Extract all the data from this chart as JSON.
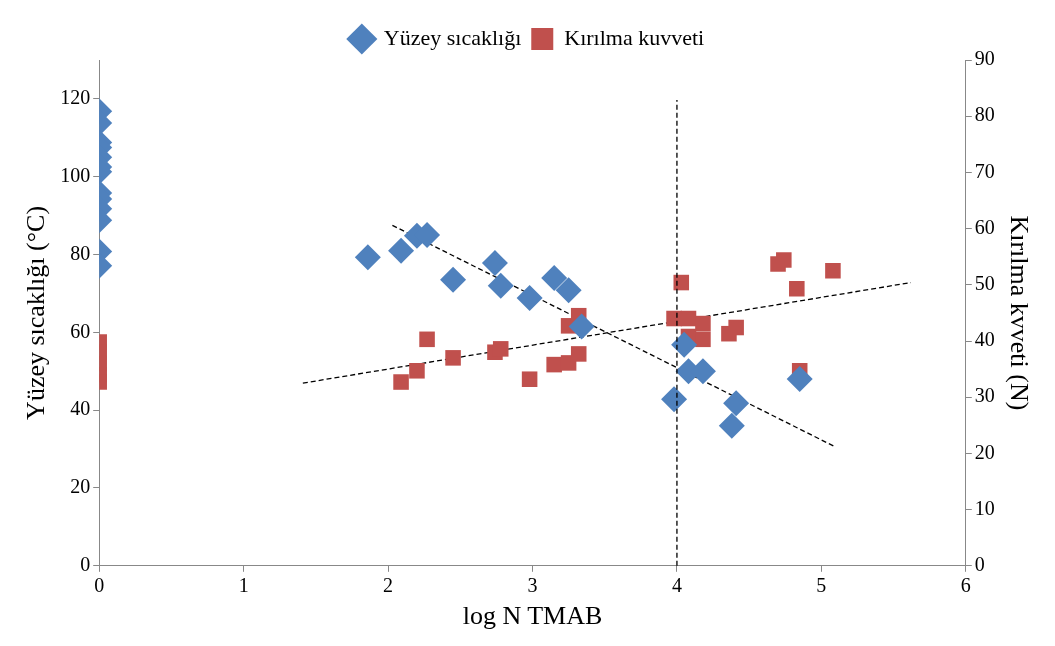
{
  "chart_data": {
    "type": "scatter",
    "xlabel": "log N TMAB",
    "ylabel": "Yüzey sıcaklığı (°C)",
    "y2label": "Kırılma kvveti (N)",
    "xlim": [
      0,
      6
    ],
    "xticks": [
      0,
      1,
      2,
      3,
      4,
      5,
      6
    ],
    "ylim": [
      0,
      130
    ],
    "yticks": [
      0,
      20,
      40,
      60,
      80,
      100,
      120
    ],
    "y2lim": [
      0,
      90
    ],
    "y2ticks": [
      0,
      10,
      20,
      30,
      40,
      50,
      60,
      70,
      80,
      90
    ],
    "grid": false,
    "legend": "top",
    "series": [
      {
        "name": "Yüzey sıcaklığı",
        "color": "#4f81bd",
        "marker": "diamond",
        "x": [
          0,
          0,
          0,
          0,
          0,
          0,
          0,
          0,
          0,
          0,
          0,
          0,
          0,
          1.86,
          2.09,
          2.2,
          2.27,
          2.45,
          2.74,
          2.78,
          2.98,
          3.15,
          3.25,
          3.34,
          4.05,
          4.08,
          4.18,
          3.98,
          4.41,
          4.38,
          4.85
        ],
        "values": [
          116.8,
          113.8,
          108.8,
          107.5,
          105,
          102.5,
          101.3,
          95.8,
          94.3,
          91.8,
          88.8,
          80.8,
          77.1,
          79.3,
          81,
          84.8,
          85,
          73.5,
          77.8,
          72,
          68.8,
          74,
          70.8,
          61.5,
          56.8,
          50,
          50,
          42.8,
          41.8,
          36,
          48
        ]
      },
      {
        "name": "Kırılma kuvveti",
        "color": "#c0504d",
        "marker": "square",
        "axis": "y2",
        "x": [
          0,
          0,
          0,
          0,
          0,
          2.09,
          2.2,
          2.27,
          2.45,
          2.74,
          2.78,
          2.98,
          3.15,
          3.25,
          3.25,
          3.32,
          3.32,
          4.03,
          3.98,
          4.08,
          4.18,
          4.08,
          4.18,
          4.36,
          4.41,
          4.7,
          4.74,
          5.08,
          4.83,
          4.85
        ],
        "values": [
          39.8,
          38,
          36,
          34,
          32.7,
          32.7,
          34.7,
          40.3,
          37,
          38,
          38.6,
          33.2,
          35.8,
          36.1,
          42.7,
          37.7,
          44.5,
          50.4,
          44,
          44,
          43.1,
          40.8,
          40.3,
          41.3,
          42.4,
          53.7,
          54.4,
          52.5,
          49.3,
          34.7
        ]
      },
      {
        "type": "line",
        "color": "#000000",
        "marker": "none",
        "line_style": "dashed",
        "x": [
          2.03,
          5.1
        ],
        "values": [
          87.5,
          30.5
        ]
      },
      {
        "type": "line",
        "color": "#000000",
        "marker": "none",
        "line_style": "dashed",
        "axis": "y2",
        "x": [
          1.41,
          5.62
        ],
        "values": [
          32.5,
          50.4
        ]
      }
    ],
    "ref_lines": [
      {
        "axis": "x",
        "value": 4,
        "color": "#000000",
        "line_style": "dashed"
      }
    ]
  }
}
